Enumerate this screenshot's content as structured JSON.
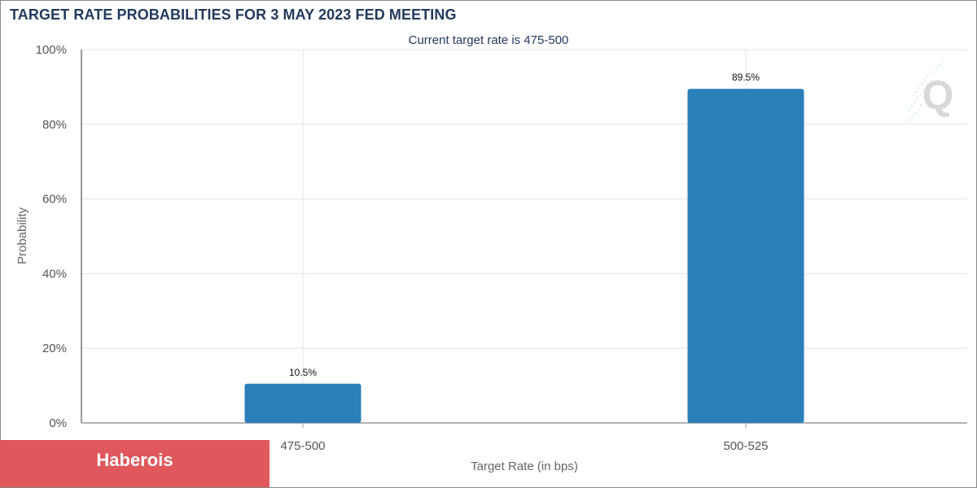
{
  "title": "TARGET RATE PROBABILITIES FOR 3 MAY 2023 FED MEETING",
  "brand": {
    "name": "Haberois"
  },
  "watermark": {
    "letter": "Q"
  },
  "colors": {
    "bar": "#2b7fb8",
    "title": "#233a5e",
    "grid": "#e3e3e3",
    "text": "#555555"
  },
  "chart_data": {
    "type": "bar",
    "subtitle": "Current target rate is 475-500",
    "xlabel": "Target Rate (in bps)",
    "ylabel": "Probability",
    "categories": [
      "475-500",
      "500-525"
    ],
    "values": [
      10.5,
      89.5
    ],
    "data_labels": [
      "10.5%",
      "89.5%"
    ],
    "ylim": [
      0,
      100
    ],
    "yticks": [
      0,
      20,
      40,
      60,
      80,
      100
    ],
    "ytick_labels": [
      "0%",
      "20%",
      "40%",
      "60%",
      "80%",
      "100%"
    ],
    "grid": true,
    "legend": "none"
  }
}
